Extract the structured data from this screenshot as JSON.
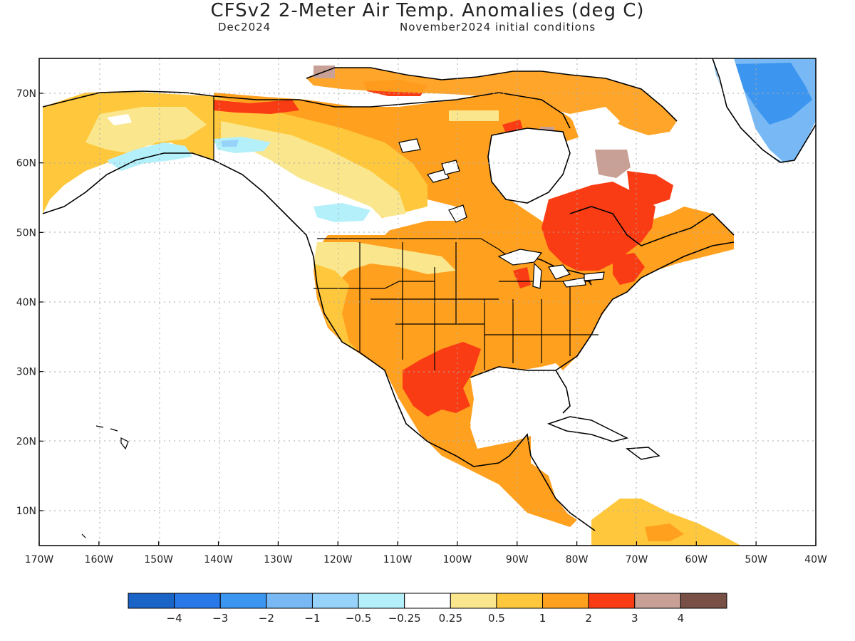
{
  "title": "CFSv2 2-Meter Air Temp. Anomalies (deg C)",
  "subtitle_left": "Dec2024",
  "subtitle_right": "November2024 initial conditions",
  "lon_labels": [
    "170W",
    "160W",
    "150W",
    "140W",
    "130W",
    "120W",
    "110W",
    "100W",
    "90W",
    "80W",
    "70W",
    "60W",
    "50W",
    "40W"
  ],
  "lat_labels": [
    "10N",
    "20N",
    "30N",
    "40N",
    "50N",
    "60N",
    "70N"
  ],
  "colorbar": {
    "colors": [
      "#1a64c8",
      "#2878e8",
      "#3c96f0",
      "#78b9f5",
      "#96d2fa",
      "#b4f0fa",
      "#ffffff",
      "#fae68c",
      "#ffc83c",
      "#ffa01e",
      "#fa3c14",
      "#c8a096",
      "#785046"
    ],
    "labels": [
      "−4",
      "−3",
      "−2",
      "−1",
      "−0.5",
      "−0.25",
      "0.25",
      "0.5",
      "1",
      "2",
      "3",
      "4"
    ]
  },
  "colors": {
    "ocean": "#ffffff",
    "coast": "#000000",
    "grid": "#aaaaaa"
  }
}
